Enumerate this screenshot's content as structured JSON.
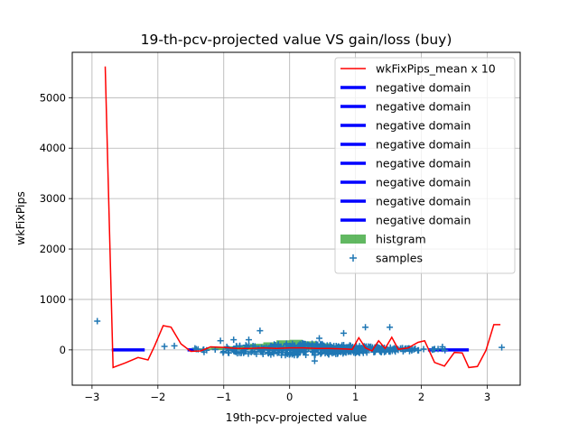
{
  "chart_data": {
    "type": "line",
    "title": "19-th-pcv-projected value VS gain/loss (buy)",
    "xlabel": "19th-pcv-projected value",
    "ylabel": "wkFixPips",
    "xlim": [
      -3.3,
      3.5
    ],
    "ylim": [
      -700,
      5900
    ],
    "xticks": [
      -3,
      -2,
      -1,
      0,
      1,
      2,
      3
    ],
    "xtick_labels": [
      "−3",
      "−2",
      "−1",
      "0",
      "1",
      "2",
      "3"
    ],
    "yticks": [
      0,
      1000,
      2000,
      3000,
      4000,
      5000
    ],
    "ytick_labels": [
      "0",
      "1000",
      "2000",
      "3000",
      "4000",
      "5000"
    ],
    "grid": true,
    "legend_position": "top-right",
    "colors": {
      "mean_line": "#ff0000",
      "negative_domain": "#0000ff",
      "histogram": "#2ca02c",
      "samples": "#1f77b4"
    },
    "legend": [
      {
        "label": "wkFixPips_mean x 10",
        "kind": "line",
        "color": "#ff0000"
      },
      {
        "label": "negative domain",
        "kind": "thickline",
        "color": "#0000ff"
      },
      {
        "label": "negative domain",
        "kind": "thickline",
        "color": "#0000ff"
      },
      {
        "label": "negative domain",
        "kind": "thickline",
        "color": "#0000ff"
      },
      {
        "label": "negative domain",
        "kind": "thickline",
        "color": "#0000ff"
      },
      {
        "label": "negative domain",
        "kind": "thickline",
        "color": "#0000ff"
      },
      {
        "label": "negative domain",
        "kind": "thickline",
        "color": "#0000ff"
      },
      {
        "label": "negative domain",
        "kind": "thickline",
        "color": "#0000ff"
      },
      {
        "label": "negative domain",
        "kind": "thickline",
        "color": "#0000ff"
      },
      {
        "label": "histgram",
        "kind": "patch",
        "color": "#2ca02c"
      },
      {
        "label": "samples",
        "kind": "marker",
        "color": "#1f77b4"
      }
    ],
    "mean_line": {
      "name": "wkFixPips_mean x 10",
      "x": [
        -2.8,
        -2.68,
        -2.5,
        -2.3,
        -2.15,
        -2.05,
        -1.92,
        -1.8,
        -1.65,
        -1.5,
        -1.35,
        -1.2,
        -1.0,
        -0.8,
        -0.6,
        -0.4,
        -0.2,
        0.0,
        0.2,
        0.4,
        0.6,
        0.8,
        0.95,
        1.05,
        1.15,
        1.25,
        1.35,
        1.45,
        1.55,
        1.65,
        1.8,
        1.95,
        2.05,
        2.2,
        2.35,
        2.5,
        2.62,
        2.72,
        2.85,
        2.98,
        3.1,
        3.2
      ],
      "y": [
        5620,
        -350,
        -260,
        -150,
        -200,
        80,
        480,
        450,
        120,
        -30,
        -20,
        60,
        50,
        30,
        30,
        40,
        30,
        40,
        40,
        30,
        30,
        20,
        10,
        240,
        40,
        -20,
        180,
        30,
        250,
        10,
        40,
        150,
        180,
        -250,
        -320,
        -50,
        -60,
        -350,
        -330,
        -10,
        500,
        500
      ]
    },
    "negative_domains": [
      {
        "x": [
          -2.7,
          -2.2
        ],
        "y": 0
      },
      {
        "x": [
          -1.55,
          -1.45
        ],
        "y": 0
      },
      {
        "x": [
          2.1,
          2.72
        ],
        "y": 0
      }
    ],
    "histogram": {
      "bins": [
        -1.4,
        -1.2,
        -1.0,
        -0.8,
        -0.6,
        -0.4,
        -0.2,
        0.0,
        0.2,
        0.4,
        0.6,
        0.8
      ],
      "counts": [
        30,
        50,
        70,
        90,
        120,
        150,
        190,
        200,
        170,
        130,
        90,
        50
      ]
    },
    "samples": {
      "name": "samples",
      "outliers": [
        {
          "x": -2.92,
          "y": 570
        },
        {
          "x": -1.9,
          "y": 70
        },
        {
          "x": -1.75,
          "y": 80
        },
        {
          "x": -1.05,
          "y": 180
        },
        {
          "x": -0.85,
          "y": 200
        },
        {
          "x": -0.62,
          "y": 200
        },
        {
          "x": -0.45,
          "y": 380
        },
        {
          "x": 0.38,
          "y": -220
        },
        {
          "x": 0.45,
          "y": 230
        },
        {
          "x": 0.82,
          "y": 330
        },
        {
          "x": 1.15,
          "y": 450
        },
        {
          "x": 1.52,
          "y": 450
        },
        {
          "x": 2.32,
          "y": 60
        },
        {
          "x": 3.22,
          "y": 50
        }
      ],
      "cluster": {
        "x_range": [
          -1.7,
          2.7
        ],
        "y_range": [
          -110,
          150
        ]
      }
    }
  }
}
